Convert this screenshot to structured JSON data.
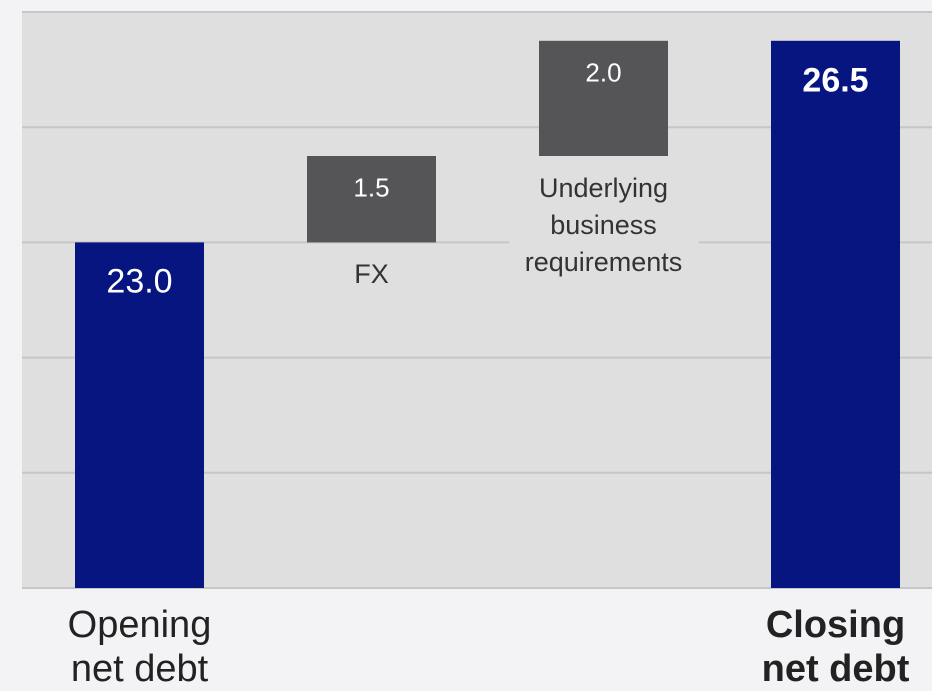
{
  "chart_data": {
    "type": "waterfall",
    "categories": [
      "Opening net debt",
      "FX",
      "Underlying business requirements",
      "Closing net debt"
    ],
    "values": [
      23.0,
      1.5,
      2.0,
      26.5
    ],
    "value_labels": [
      "23.0",
      "1.5",
      "2.0",
      "26.5"
    ],
    "measures": [
      "absolute",
      "relative",
      "relative",
      "total"
    ],
    "total_color": "#06157f",
    "change_color": "#555558",
    "ylim": [
      17,
      27
    ],
    "yticks": [
      17,
      19,
      21,
      23,
      25,
      27
    ],
    "grid": true
  }
}
